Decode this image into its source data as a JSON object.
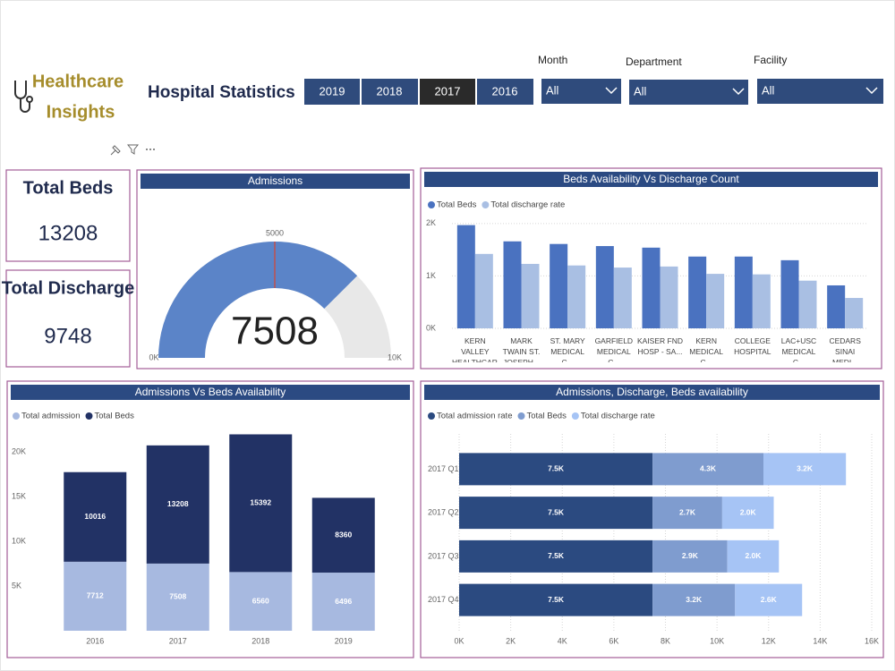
{
  "header": {
    "brand_line1": "Healthcare",
    "brand_line2": "Insights",
    "title": "Hospital Statistics",
    "years": [
      "2019",
      "2018",
      "2017",
      "2016"
    ],
    "filters": [
      {
        "label": "Month",
        "value": "All"
      },
      {
        "label": "Department",
        "value": "All"
      },
      {
        "label": "Facility",
        "value": "All"
      }
    ]
  },
  "kpis": [
    {
      "label": "Total Beds",
      "value": 13208
    },
    {
      "label": "Total Discharge",
      "value": 9748
    }
  ],
  "chart_data": [
    {
      "type": "gauge",
      "title": "Admissions",
      "value": 7508,
      "target": 5000,
      "color": "#5b84c8",
      "target_color": "#c0504d",
      "ylim": [
        0,
        10000
      ],
      "yticks": [
        {
          "value": 0,
          "label": "0K"
        },
        {
          "value": 10000,
          "label": "10K"
        }
      ]
    },
    {
      "type": "bar",
      "title": "Beds Availability Vs Discharge Count",
      "categories": [
        "KERN VALLEY HEALTHCAR...",
        "MARK TWAIN ST. JOSEPH...",
        "ST. MARY MEDICAL C...",
        "GARFIELD MEDICAL C...",
        "KAISER FND HOSP - SA...",
        "KERN MEDICAL C...",
        "COLLEGE HOSPITAL",
        "LAC+USC MEDICAL C...",
        "CEDARS SINAI MEDI..."
      ],
      "series": [
        {
          "name": "Total Beds",
          "color": "#4a72c0",
          "values": [
            1970,
            1660,
            1610,
            1570,
            1540,
            1370,
            1370,
            1300,
            820
          ]
        },
        {
          "name": "Total discharge rate",
          "color": "#a9bfe3",
          "values": [
            1420,
            1230,
            1200,
            1160,
            1180,
            1040,
            1030,
            910,
            580
          ]
        }
      ],
      "ylim": [
        0,
        2100
      ],
      "yticks": [
        {
          "value": 0,
          "label": "0K"
        },
        {
          "value": 1000,
          "label": "1K"
        },
        {
          "value": 2000,
          "label": "2K"
        }
      ],
      "grid": true
    },
    {
      "type": "stacked_bar",
      "horizontal": false,
      "title": "Admissions Vs  Beds Availability",
      "categories": [
        "2016",
        "2017",
        "2018",
        "2019"
      ],
      "series": [
        {
          "name": "Total admission",
          "color": "#a7b9e0",
          "values": [
            7712,
            7508,
            6560,
            6496
          ]
        },
        {
          "name": "Total Beds",
          "color": "#223265",
          "values": [
            10016,
            13208,
            15392,
            8360
          ]
        }
      ],
      "ylim": [
        0,
        22000
      ],
      "yticks": [
        {
          "value": 5000,
          "label": "5K"
        },
        {
          "value": 10000,
          "label": "10K"
        },
        {
          "value": 15000,
          "label": "15K"
        },
        {
          "value": 20000,
          "label": "20K"
        }
      ],
      "grid": false
    },
    {
      "type": "stacked_bar",
      "horizontal": true,
      "title": "Admissions, Discharge, Beds availability",
      "categories": [
        "2017 Q1",
        "2017 Q2",
        "2017 Q3",
        "2017 Q4"
      ],
      "series": [
        {
          "name": "Total admission rate",
          "color": "#2b4a80",
          "values": [
            7500,
            7500,
            7500,
            7500
          ],
          "value_labels": [
            "7.5K",
            "7.5K",
            "7.5K",
            "7.5K"
          ]
        },
        {
          "name": "Total Beds",
          "color": "#7f9ccf",
          "values": [
            4300,
            2700,
            2900,
            3200
          ],
          "value_labels": [
            "4.3K",
            "2.7K",
            "2.9K",
            "3.2K"
          ]
        },
        {
          "name": "Total discharge rate",
          "color": "#a6c4f5",
          "values": [
            3200,
            2000,
            2000,
            2600
          ],
          "value_labels": [
            "3.2K",
            "2.0K",
            "2.0K",
            "2.6K"
          ]
        }
      ],
      "xlim": [
        0,
        16000
      ],
      "xticks": [
        {
          "value": 0,
          "label": "0K"
        },
        {
          "value": 2000,
          "label": "2K"
        },
        {
          "value": 4000,
          "label": "4K"
        },
        {
          "value": 6000,
          "label": "6K"
        },
        {
          "value": 8000,
          "label": "8K"
        },
        {
          "value": 10000,
          "label": "10K"
        },
        {
          "value": 12000,
          "label": "12K"
        },
        {
          "value": 14000,
          "label": "14K"
        },
        {
          "value": 16000,
          "label": "16K"
        }
      ],
      "grid": true
    }
  ]
}
